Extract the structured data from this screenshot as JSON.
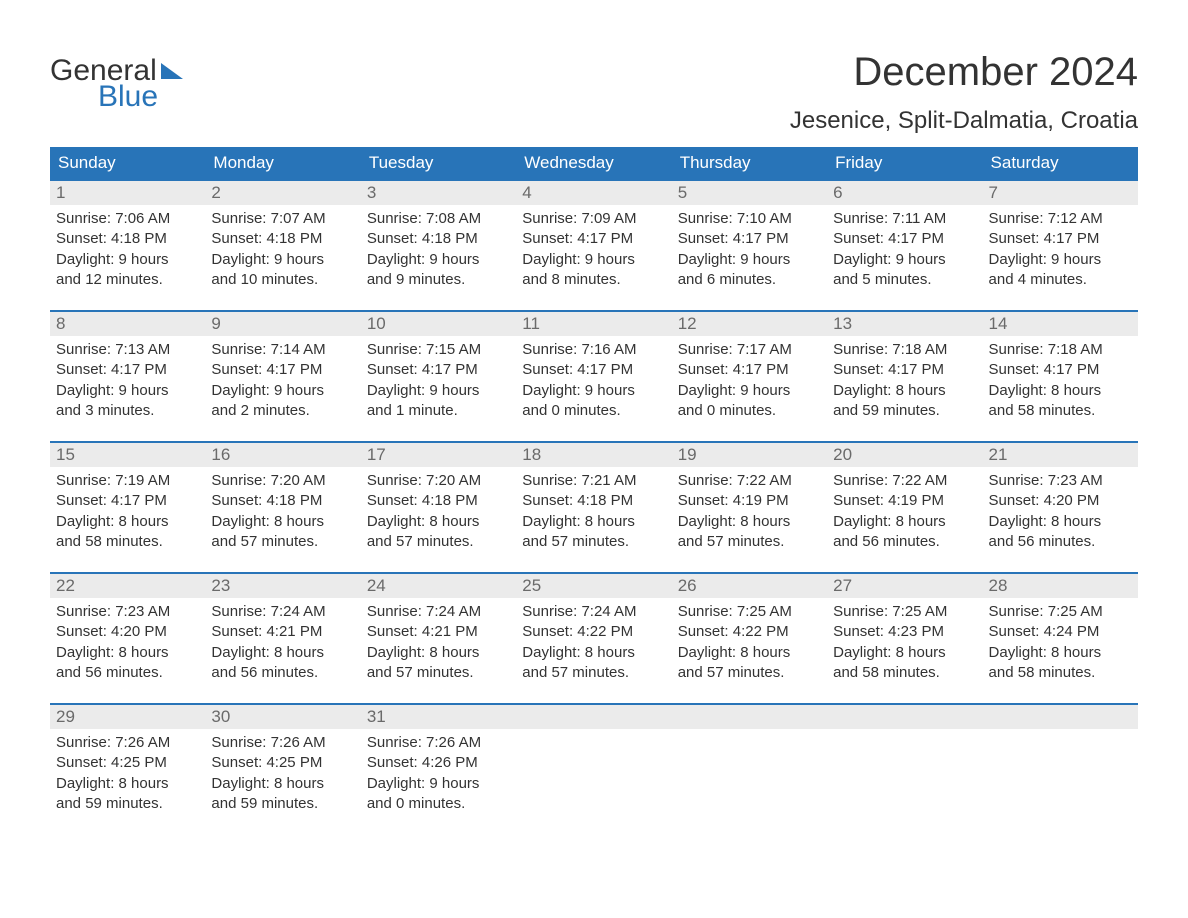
{
  "logo": {
    "text1": "General",
    "text2": "Blue"
  },
  "title": "December 2024",
  "location": "Jesenice, Split-Dalmatia, Croatia",
  "colors": {
    "header_bg": "#2874b8",
    "header_text": "#ffffff",
    "daynum_bg": "#ebebeb",
    "daynum_text": "#6a6a6a",
    "body_text": "#333333",
    "week_border": "#2874b8"
  },
  "weekdays": [
    "Sunday",
    "Monday",
    "Tuesday",
    "Wednesday",
    "Thursday",
    "Friday",
    "Saturday"
  ],
  "labels": {
    "sunrise": "Sunrise:",
    "sunset": "Sunset:",
    "daylight": "Daylight:"
  },
  "weeks": [
    [
      {
        "n": "1",
        "sunrise": "7:06 AM",
        "sunset": "4:18 PM",
        "dl1": "9 hours",
        "dl2": "and 12 minutes."
      },
      {
        "n": "2",
        "sunrise": "7:07 AM",
        "sunset": "4:18 PM",
        "dl1": "9 hours",
        "dl2": "and 10 minutes."
      },
      {
        "n": "3",
        "sunrise": "7:08 AM",
        "sunset": "4:18 PM",
        "dl1": "9 hours",
        "dl2": "and 9 minutes."
      },
      {
        "n": "4",
        "sunrise": "7:09 AM",
        "sunset": "4:17 PM",
        "dl1": "9 hours",
        "dl2": "and 8 minutes."
      },
      {
        "n": "5",
        "sunrise": "7:10 AM",
        "sunset": "4:17 PM",
        "dl1": "9 hours",
        "dl2": "and 6 minutes."
      },
      {
        "n": "6",
        "sunrise": "7:11 AM",
        "sunset": "4:17 PM",
        "dl1": "9 hours",
        "dl2": "and 5 minutes."
      },
      {
        "n": "7",
        "sunrise": "7:12 AM",
        "sunset": "4:17 PM",
        "dl1": "9 hours",
        "dl2": "and 4 minutes."
      }
    ],
    [
      {
        "n": "8",
        "sunrise": "7:13 AM",
        "sunset": "4:17 PM",
        "dl1": "9 hours",
        "dl2": "and 3 minutes."
      },
      {
        "n": "9",
        "sunrise": "7:14 AM",
        "sunset": "4:17 PM",
        "dl1": "9 hours",
        "dl2": "and 2 minutes."
      },
      {
        "n": "10",
        "sunrise": "7:15 AM",
        "sunset": "4:17 PM",
        "dl1": "9 hours",
        "dl2": "and 1 minute."
      },
      {
        "n": "11",
        "sunrise": "7:16 AM",
        "sunset": "4:17 PM",
        "dl1": "9 hours",
        "dl2": "and 0 minutes."
      },
      {
        "n": "12",
        "sunrise": "7:17 AM",
        "sunset": "4:17 PM",
        "dl1": "9 hours",
        "dl2": "and 0 minutes."
      },
      {
        "n": "13",
        "sunrise": "7:18 AM",
        "sunset": "4:17 PM",
        "dl1": "8 hours",
        "dl2": "and 59 minutes."
      },
      {
        "n": "14",
        "sunrise": "7:18 AM",
        "sunset": "4:17 PM",
        "dl1": "8 hours",
        "dl2": "and 58 minutes."
      }
    ],
    [
      {
        "n": "15",
        "sunrise": "7:19 AM",
        "sunset": "4:17 PM",
        "dl1": "8 hours",
        "dl2": "and 58 minutes."
      },
      {
        "n": "16",
        "sunrise": "7:20 AM",
        "sunset": "4:18 PM",
        "dl1": "8 hours",
        "dl2": "and 57 minutes."
      },
      {
        "n": "17",
        "sunrise": "7:20 AM",
        "sunset": "4:18 PM",
        "dl1": "8 hours",
        "dl2": "and 57 minutes."
      },
      {
        "n": "18",
        "sunrise": "7:21 AM",
        "sunset": "4:18 PM",
        "dl1": "8 hours",
        "dl2": "and 57 minutes."
      },
      {
        "n": "19",
        "sunrise": "7:22 AM",
        "sunset": "4:19 PM",
        "dl1": "8 hours",
        "dl2": "and 57 minutes."
      },
      {
        "n": "20",
        "sunrise": "7:22 AM",
        "sunset": "4:19 PM",
        "dl1": "8 hours",
        "dl2": "and 56 minutes."
      },
      {
        "n": "21",
        "sunrise": "7:23 AM",
        "sunset": "4:20 PM",
        "dl1": "8 hours",
        "dl2": "and 56 minutes."
      }
    ],
    [
      {
        "n": "22",
        "sunrise": "7:23 AM",
        "sunset": "4:20 PM",
        "dl1": "8 hours",
        "dl2": "and 56 minutes."
      },
      {
        "n": "23",
        "sunrise": "7:24 AM",
        "sunset": "4:21 PM",
        "dl1": "8 hours",
        "dl2": "and 56 minutes."
      },
      {
        "n": "24",
        "sunrise": "7:24 AM",
        "sunset": "4:21 PM",
        "dl1": "8 hours",
        "dl2": "and 57 minutes."
      },
      {
        "n": "25",
        "sunrise": "7:24 AM",
        "sunset": "4:22 PM",
        "dl1": "8 hours",
        "dl2": "and 57 minutes."
      },
      {
        "n": "26",
        "sunrise": "7:25 AM",
        "sunset": "4:22 PM",
        "dl1": "8 hours",
        "dl2": "and 57 minutes."
      },
      {
        "n": "27",
        "sunrise": "7:25 AM",
        "sunset": "4:23 PM",
        "dl1": "8 hours",
        "dl2": "and 58 minutes."
      },
      {
        "n": "28",
        "sunrise": "7:25 AM",
        "sunset": "4:24 PM",
        "dl1": "8 hours",
        "dl2": "and 58 minutes."
      }
    ],
    [
      {
        "n": "29",
        "sunrise": "7:26 AM",
        "sunset": "4:25 PM",
        "dl1": "8 hours",
        "dl2": "and 59 minutes."
      },
      {
        "n": "30",
        "sunrise": "7:26 AM",
        "sunset": "4:25 PM",
        "dl1": "8 hours",
        "dl2": "and 59 minutes."
      },
      {
        "n": "31",
        "sunrise": "7:26 AM",
        "sunset": "4:26 PM",
        "dl1": "9 hours",
        "dl2": "and 0 minutes."
      },
      null,
      null,
      null,
      null
    ]
  ]
}
